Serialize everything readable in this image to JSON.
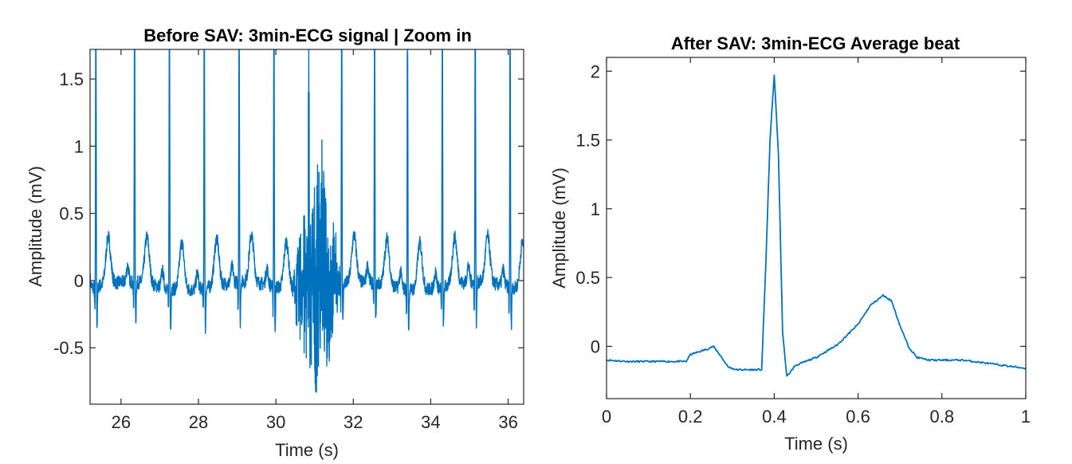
{
  "chart_data": [
    {
      "type": "line",
      "title": "Before SAV: 3min-ECG signal | Zoom in",
      "xlabel": "Time (s)",
      "ylabel": "Amplitude (mV)",
      "xlim": [
        25.2,
        36.4
      ],
      "ylim": [
        -0.92,
        1.72
      ],
      "xticks": [
        26,
        28,
        30,
        32,
        34,
        36
      ],
      "xtick_labels": [
        "26",
        "28",
        "30",
        "32",
        "34",
        "36"
      ],
      "yticks": [
        -0.5,
        0,
        0.5,
        1,
        1.5
      ],
      "ytick_labels": [
        "-0.5",
        "0",
        "0.5",
        "1",
        "1.5"
      ],
      "line_color": "#0072bd",
      "r_peak_times": [
        25.35,
        26.35,
        27.25,
        28.15,
        29.05,
        29.95,
        30.85,
        31.7,
        32.55,
        33.4,
        34.3,
        35.15,
        36.05
      ],
      "noise_interval": [
        30.4,
        31.7
      ]
    },
    {
      "type": "line",
      "title": "After SAV: 3min-ECG Average beat",
      "xlabel": "Time (s)",
      "ylabel": "Amplitude (mV)",
      "xlim": [
        0,
        1
      ],
      "ylim": [
        -0.38,
        2.1
      ],
      "xticks": [
        0,
        0.2,
        0.4,
        0.6,
        0.8,
        1
      ],
      "xtick_labels": [
        "0",
        "0.2",
        "0.4",
        "0.6",
        "0.8",
        "1"
      ],
      "yticks": [
        0,
        0.5,
        1,
        1.5,
        2
      ],
      "ytick_labels": [
        "0",
        "0.5",
        "1",
        "1.5",
        "2"
      ],
      "line_color": "#0072bd",
      "x": [
        0,
        0.05,
        0.1,
        0.15,
        0.19,
        0.2,
        0.22,
        0.24,
        0.255,
        0.27,
        0.29,
        0.31,
        0.34,
        0.37,
        0.38,
        0.39,
        0.4,
        0.41,
        0.42,
        0.43,
        0.45,
        0.5,
        0.55,
        0.6,
        0.63,
        0.66,
        0.68,
        0.7,
        0.72,
        0.74,
        0.77,
        0.8,
        0.85,
        0.9,
        0.95,
        1.0
      ],
      "y": [
        -0.1,
        -0.11,
        -0.11,
        -0.11,
        -0.11,
        -0.06,
        -0.04,
        -0.02,
        0.0,
        -0.06,
        -0.15,
        -0.17,
        -0.17,
        -0.17,
        0.6,
        1.5,
        1.97,
        1.4,
        0.1,
        -0.22,
        -0.14,
        -0.08,
        0.01,
        0.16,
        0.3,
        0.37,
        0.33,
        0.15,
        0.0,
        -0.08,
        -0.1,
        -0.1,
        -0.1,
        -0.12,
        -0.14,
        -0.16
      ]
    }
  ]
}
